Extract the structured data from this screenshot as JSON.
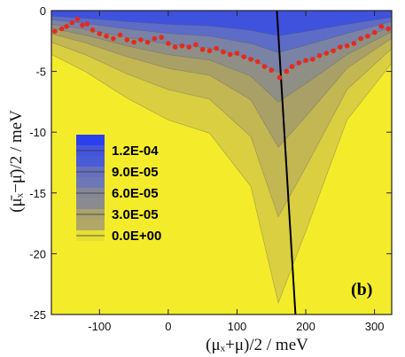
{
  "chart_data": {
    "type": "heatmap",
    "title": "",
    "xlabel": "(μₓ+μ)/2  /  meV",
    "ylabel": "(μ̄ₓ−μ̄)/2  /  meV",
    "xlim": [
      -170,
      325
    ],
    "ylim": [
      -25,
      0
    ],
    "x_ticks": [
      -100,
      0,
      100,
      200,
      300
    ],
    "y_ticks": [
      0,
      -5,
      -10,
      -15,
      -20,
      -25
    ],
    "x_tick_labels": [
      "-100",
      "0",
      "100",
      "200",
      "300"
    ],
    "y_tick_labels": [
      "0",
      "-5",
      "-10",
      "-15",
      "-20",
      "-25"
    ],
    "panel_label": "(b)",
    "colorbar": {
      "levels": [
        0.00012,
        9e-05,
        6e-05,
        3e-05,
        0.0
      ],
      "labels": [
        "1.2E-04",
        "9.0E-05",
        "6.0E-05",
        "3.0E-05",
        "0.0E+00"
      ],
      "colors": [
        "#2e43e6",
        "#6b79bc",
        "#8c8e86",
        "#b3aa64",
        "#f4ec2a"
      ]
    },
    "contour_bottom_depth": [
      {
        "x": -170,
        "y": -1.0
      },
      {
        "x": -120,
        "y": -1.4
      },
      {
        "x": -60,
        "y": -2.0
      },
      {
        "x": 0,
        "y": -2.5
      },
      {
        "x": 60,
        "y": -2.8
      },
      {
        "x": 120,
        "y": -3.6
      },
      {
        "x": 160,
        "y": -4.6
      },
      {
        "x": 200,
        "y": -3.8
      },
      {
        "x": 260,
        "y": -2.5
      },
      {
        "x": 325,
        "y": -1.2
      }
    ],
    "series": [
      {
        "type": "scatter",
        "color": "#e52a1f",
        "points": [
          {
            "x": -165,
            "y": -1.7
          },
          {
            "x": -155,
            "y": -1.5
          },
          {
            "x": -148,
            "y": -1.3
          },
          {
            "x": -140,
            "y": -1.0
          },
          {
            "x": -132,
            "y": -0.7
          },
          {
            "x": -125,
            "y": -1.2
          },
          {
            "x": -118,
            "y": -1.1
          },
          {
            "x": -110,
            "y": -1.6
          },
          {
            "x": -100,
            "y": -1.9
          },
          {
            "x": -90,
            "y": -2.1
          },
          {
            "x": -80,
            "y": -2.3
          },
          {
            "x": -70,
            "y": -2.0
          },
          {
            "x": -60,
            "y": -2.4
          },
          {
            "x": -50,
            "y": -2.6
          },
          {
            "x": -40,
            "y": -2.4
          },
          {
            "x": -30,
            "y": -2.6
          },
          {
            "x": -20,
            "y": -2.3
          },
          {
            "x": -10,
            "y": -2.2
          },
          {
            "x": 0,
            "y": -2.7
          },
          {
            "x": 10,
            "y": -3.0
          },
          {
            "x": 20,
            "y": -2.9
          },
          {
            "x": 30,
            "y": -3.0
          },
          {
            "x": 40,
            "y": -2.8
          },
          {
            "x": 50,
            "y": -3.2
          },
          {
            "x": 60,
            "y": -3.3
          },
          {
            "x": 70,
            "y": -3.1
          },
          {
            "x": 80,
            "y": -3.4
          },
          {
            "x": 90,
            "y": -3.6
          },
          {
            "x": 100,
            "y": -3.5
          },
          {
            "x": 110,
            "y": -3.8
          },
          {
            "x": 120,
            "y": -4.0
          },
          {
            "x": 130,
            "y": -4.2
          },
          {
            "x": 140,
            "y": -4.6
          },
          {
            "x": 150,
            "y": -4.9
          },
          {
            "x": 162,
            "y": -5.5
          },
          {
            "x": 172,
            "y": -5.0
          },
          {
            "x": 180,
            "y": -4.6
          },
          {
            "x": 190,
            "y": -4.3
          },
          {
            "x": 200,
            "y": -4.1
          },
          {
            "x": 210,
            "y": -4.0
          },
          {
            "x": 220,
            "y": -3.7
          },
          {
            "x": 230,
            "y": -3.5
          },
          {
            "x": 240,
            "y": -3.3
          },
          {
            "x": 250,
            "y": -3.0
          },
          {
            "x": 260,
            "y": -2.9
          },
          {
            "x": 270,
            "y": -2.7
          },
          {
            "x": 280,
            "y": -2.3
          },
          {
            "x": 290,
            "y": -2.1
          },
          {
            "x": 300,
            "y": -1.8
          },
          {
            "x": 310,
            "y": -1.3
          },
          {
            "x": 320,
            "y": -1.5
          }
        ]
      },
      {
        "type": "line",
        "color": "#000000",
        "points": [
          {
            "x": 158,
            "y": 0
          },
          {
            "x": 185,
            "y": -25
          }
        ]
      }
    ]
  }
}
